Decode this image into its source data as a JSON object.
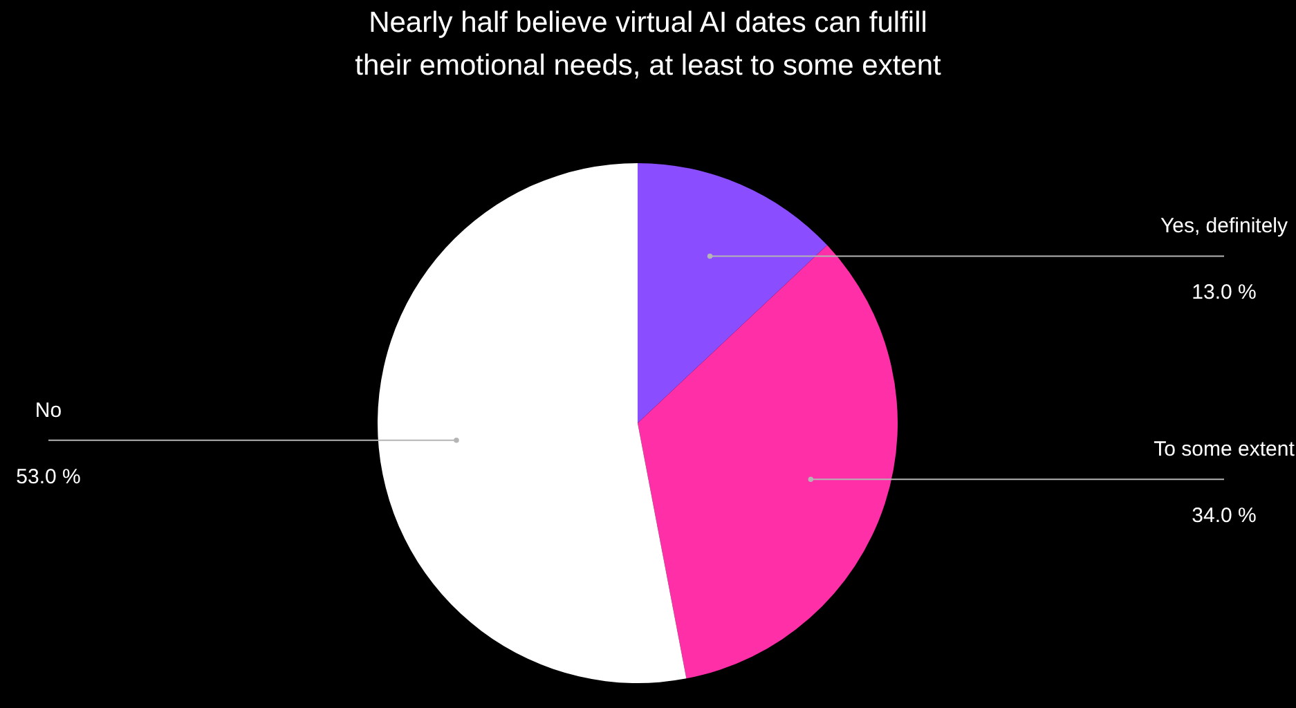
{
  "chart_data": {
    "type": "pie",
    "title": "Nearly half believe virtual AI dates can fulfill their emotional needs, at least to some extent",
    "categories": [
      "Yes, definitely",
      "To some extent",
      "No"
    ],
    "values": [
      13.0,
      34.0,
      53.0
    ],
    "colors": [
      "#8a4dff",
      "#ff2fa8",
      "#ffffff"
    ],
    "value_labels": [
      "13.0 %",
      "34.0 %",
      "53.0 %"
    ],
    "legend": false
  }
}
